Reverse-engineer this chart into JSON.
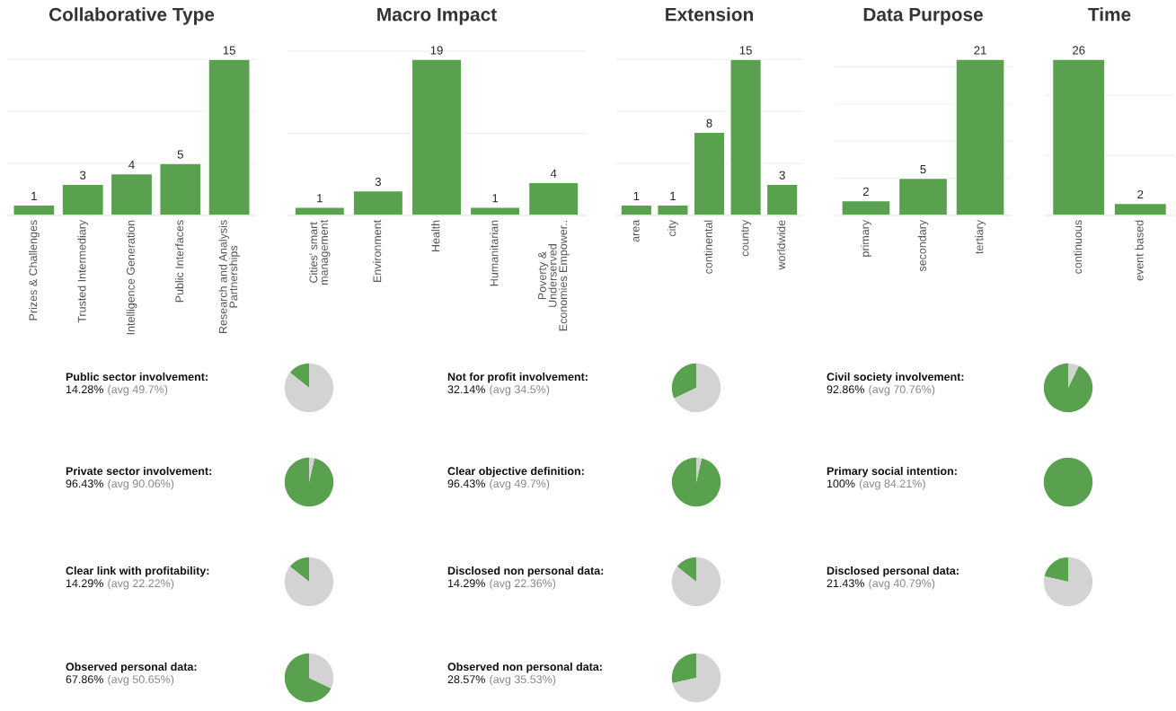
{
  "chart_data": [
    {
      "type": "bar",
      "title": "Collaborative Type",
      "categories": [
        "Prizes & Challenges",
        "Trusted Intermediary",
        "Intelligence Generation",
        "Public Interfaces",
        "Research and Analysis\nPartnerships"
      ],
      "values": [
        1,
        3,
        4,
        5,
        15
      ],
      "color": "#59a14f",
      "data_labels": true,
      "tick_labels": "x",
      "ref_lines": [
        {
          "axis": "y",
          "value": 5,
          "color": "#eeeeee"
        },
        {
          "axis": "y",
          "value": 10,
          "color": "#eeeeee"
        },
        {
          "axis": "y",
          "value": 15,
          "color": "#eeeeee"
        }
      ]
    },
    {
      "type": "bar",
      "title": "Macro Impact",
      "categories": [
        "Cities' smart\nmanagement",
        "Environment",
        "Health",
        "Humanitarian",
        "Poverty &\nUnderserved\nEconomies Empower.."
      ],
      "values": [
        1,
        3,
        19,
        1,
        4
      ],
      "color": "#59a14f",
      "data_labels": true,
      "tick_labels": "x",
      "ref_lines": [
        {
          "axis": "y",
          "value": 10,
          "color": "#eeeeee"
        },
        {
          "axis": "y",
          "value": 20,
          "color": "#eeeeee"
        }
      ]
    },
    {
      "type": "bar",
      "title": "Extension",
      "categories": [
        "area",
        "city",
        "continental",
        "country",
        "worldwide"
      ],
      "values": [
        1,
        1,
        8,
        15,
        3
      ],
      "color": "#59a14f",
      "data_labels": true,
      "tick_labels": "x",
      "ref_lines": [
        {
          "axis": "y",
          "value": 5,
          "color": "#eeeeee"
        },
        {
          "axis": "y",
          "value": 10,
          "color": "#eeeeee"
        },
        {
          "axis": "y",
          "value": 15,
          "color": "#eeeeee"
        }
      ]
    },
    {
      "type": "bar",
      "title": "Data Purpose",
      "categories": [
        "primary",
        "secondary",
        "tertiary"
      ],
      "values": [
        2,
        5,
        21
      ],
      "color": "#59a14f",
      "data_labels": true,
      "tick_labels": "x",
      "ref_lines": [
        {
          "axis": "y",
          "value": 5,
          "color": "#eeeeee"
        },
        {
          "axis": "y",
          "value": 10,
          "color": "#eeeeee"
        },
        {
          "axis": "y",
          "value": 15,
          "color": "#eeeeee"
        },
        {
          "axis": "y",
          "value": 20,
          "color": "#eeeeee"
        }
      ]
    },
    {
      "type": "bar",
      "title": "Time",
      "categories": [
        "continuous",
        "event based"
      ],
      "values": [
        26,
        2
      ],
      "color": "#59a14f",
      "data_labels": true,
      "tick_labels": "x",
      "ref_lines": [
        {
          "axis": "y",
          "value": 10,
          "color": "#eeeeee"
        },
        {
          "axis": "y",
          "value": 20,
          "color": "#eeeeee"
        }
      ]
    },
    {
      "type": "pie",
      "title": "Public sector involvement:",
      "categories": [
        null,
        null
      ],
      "values": [
        14.28,
        85.72
      ],
      "colors": [
        "#59a14f",
        "#d3d3d3"
      ],
      "annotations": [
        "14.28%",
        "(avg 49.7%)"
      ]
    },
    {
      "type": "pie",
      "title": "Not for profit involvement:",
      "categories": [
        null,
        null
      ],
      "values": [
        32.14,
        67.86
      ],
      "colors": [
        "#59a14f",
        "#d3d3d3"
      ],
      "annotations": [
        "32.14%",
        "(avg 34.5%)"
      ]
    },
    {
      "type": "pie",
      "title": "Civil society involvement:",
      "categories": [
        null,
        null
      ],
      "values": [
        92.86,
        7.14
      ],
      "colors": [
        "#59a14f",
        "#d3d3d3"
      ],
      "annotations": [
        "92.86%",
        "(avg 70.76%)"
      ]
    },
    {
      "type": "pie",
      "title": "Private sector involvement:",
      "categories": [
        null,
        null
      ],
      "values": [
        96.43,
        3.57
      ],
      "colors": [
        "#59a14f",
        "#d3d3d3"
      ],
      "annotations": [
        "96.43%",
        "(avg 90.06%)"
      ]
    },
    {
      "type": "pie",
      "title": "Clear objective definition:",
      "categories": [
        null,
        null
      ],
      "values": [
        96.43,
        3.57
      ],
      "colors": [
        "#59a14f",
        "#d3d3d3"
      ],
      "annotations": [
        "96.43%",
        "(avg 49.7%)"
      ]
    },
    {
      "type": "pie",
      "title": "Primary social intention:",
      "categories": [
        null,
        null
      ],
      "values": [
        100,
        0
      ],
      "colors": [
        "#59a14f",
        "#d3d3d3"
      ],
      "annotations": [
        "100%",
        "(avg 84.21%)"
      ]
    },
    {
      "type": "pie",
      "title": "Clear link with profitability:",
      "categories": [
        null,
        null
      ],
      "values": [
        14.29,
        85.71
      ],
      "colors": [
        "#59a14f",
        "#d3d3d3"
      ],
      "annotations": [
        "14.29%",
        "(avg 22.22%)"
      ]
    },
    {
      "type": "pie",
      "title": "Disclosed non personal data:",
      "categories": [
        null,
        null
      ],
      "values": [
        14.29,
        85.71
      ],
      "colors": [
        "#59a14f",
        "#d3d3d3"
      ],
      "annotations": [
        "14.29%",
        "(avg 22.36%)"
      ]
    },
    {
      "type": "pie",
      "title": "Disclosed personal data:",
      "categories": [
        null,
        null
      ],
      "values": [
        21.43,
        78.57
      ],
      "colors": [
        "#59a14f",
        "#d3d3d3"
      ],
      "annotations": [
        "21.43%",
        "(avg 40.79%)"
      ]
    },
    {
      "type": "pie",
      "title": "Observed personal data:",
      "categories": [
        null,
        null
      ],
      "values": [
        67.86,
        32.14
      ],
      "colors": [
        "#59a14f",
        "#d3d3d3"
      ],
      "annotations": [
        "67.86%",
        "(avg 50.65%)"
      ]
    },
    {
      "type": "pie",
      "title": "Observed non personal data:",
      "categories": [
        null,
        null
      ],
      "values": [
        28.57,
        71.43
      ],
      "colors": [
        "#59a14f",
        "#d3d3d3"
      ],
      "annotations": [
        "28.57%",
        "(avg 35.53%)"
      ]
    }
  ]
}
